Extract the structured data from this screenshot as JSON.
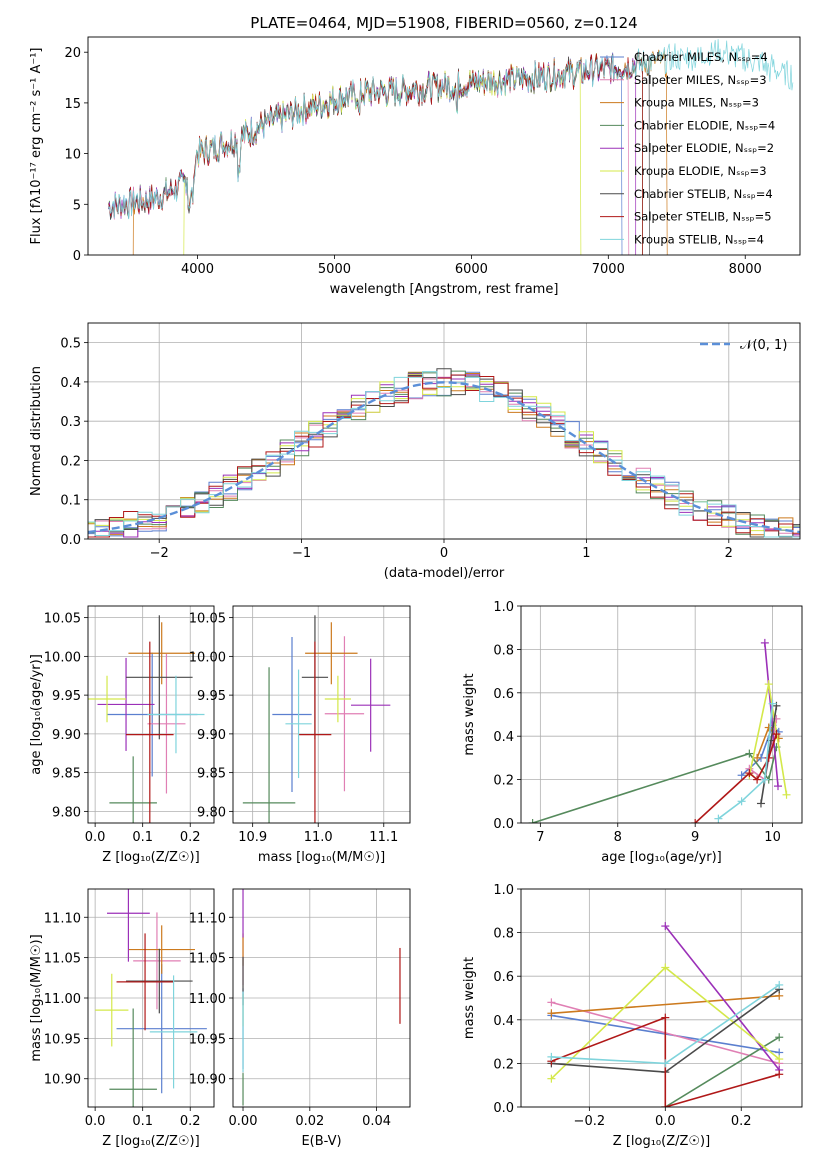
{
  "chart_data": [
    {
      "type": "line",
      "title": "PLATE=0464, MJD=51908, FIBERID=0560, z=0.124",
      "xlabel": "wavelength [Angstrom, rest frame]",
      "ylabel": "Flux [fλ10⁻¹⁷ erg cm⁻² s⁻¹ A⁻¹]",
      "xlim": [
        3200,
        8400
      ],
      "ylim": [
        0,
        21.5
      ],
      "xticks": [
        4000,
        5000,
        6000,
        7000,
        8000
      ],
      "yticks": [
        0,
        5,
        10,
        15,
        20
      ],
      "legend_position": "top-right",
      "series": [
        {
          "name": "Chabrier MILES, N_SSP=4",
          "color": "#5b7fcf"
        },
        {
          "name": "Salpeter MILES, N_SSP=3",
          "color": "#e07fb4"
        },
        {
          "name": "Kroupa MILES, N_SSP=3",
          "color": "#cc7a1e"
        },
        {
          "name": "Chabrier ELODIE, N_SSP=4",
          "color": "#558a5c"
        },
        {
          "name": "Salpeter ELODIE, N_SSP=2",
          "color": "#9b30b8"
        },
        {
          "name": "Kroupa ELODIE, N_SSP=3",
          "color": "#d4e84a"
        },
        {
          "name": "Chabrier STELIB, N_SSP=4",
          "color": "#4a4a4a"
        },
        {
          "name": "Salpeter STELIB, N_SSP=5",
          "color": "#b01818"
        },
        {
          "name": "Kroupa STELIB, N_SSP=4",
          "color": "#7fd4dc"
        }
      ],
      "continuum": {
        "x": [
          3350,
          3700,
          3900,
          4000,
          4300,
          4500,
          4800,
          5000,
          5200,
          5500,
          5800,
          6000,
          6300,
          6600,
          6900,
          7200,
          7500,
          7800,
          8100,
          8350
        ],
        "y": [
          4.8,
          5.6,
          7.0,
          10.0,
          11.5,
          13.0,
          14.5,
          15.3,
          16.0,
          16.2,
          16.7,
          17.0,
          17.3,
          17.8,
          18.2,
          18.8,
          19.4,
          20.0,
          19.0,
          17.5
        ]
      }
    },
    {
      "type": "histogram",
      "xlabel": "(data-model)/error",
      "ylabel": "Normed distribution",
      "xlim": [
        -2.5,
        2.5
      ],
      "ylim": [
        0,
        0.55
      ],
      "xticks": [
        -2,
        -1,
        0,
        1,
        2
      ],
      "yticks": [
        0.0,
        0.1,
        0.2,
        0.3,
        0.4,
        0.5
      ],
      "reference_curve": "𝒩(0, 1)",
      "reference_color": "#5b8fd8",
      "bin_width": 0.1
    },
    {
      "type": "scatter",
      "xlabel": "Z [log₁₀(Z/Z☉)]",
      "ylabel": "age  [log₁₀(age/yr)]",
      "xlim": [
        -0.015,
        0.25
      ],
      "ylim": [
        9.785,
        10.065
      ],
      "xticks": [
        0.0,
        0.1,
        0.2
      ],
      "yticks": [
        9.8,
        9.85,
        9.9,
        9.95,
        10.0,
        10.05
      ],
      "points": [
        {
          "x": 0.12,
          "y": 9.925,
          "xerr": 0.095,
          "yerr": 0.08,
          "color": "#5b7fcf"
        },
        {
          "x": 0.15,
          "y": 9.913,
          "xerr": 0.04,
          "yerr": 0.09,
          "color": "#e07fb4"
        },
        {
          "x": 0.14,
          "y": 10.004,
          "xerr": 0.07,
          "yerr": 0.04,
          "color": "#cc7a1e"
        },
        {
          "x": 0.08,
          "y": 9.811,
          "xerr": 0.05,
          "yerr": 0.06,
          "color": "#558a5c"
        },
        {
          "x": 0.065,
          "y": 9.938,
          "xerr": 0.06,
          "yerr": 0.06,
          "color": "#9b30b8"
        },
        {
          "x": 0.025,
          "y": 9.945,
          "xerr": 0.04,
          "yerr": 0.03,
          "color": "#d4e84a"
        },
        {
          "x": 0.135,
          "y": 9.973,
          "xerr": 0.07,
          "yerr": 0.08,
          "color": "#4a4a4a"
        },
        {
          "x": 0.115,
          "y": 9.899,
          "xerr": 0.05,
          "yerr": 0.12,
          "color": "#b01818"
        },
        {
          "x": 0.17,
          "y": 9.925,
          "xerr": 0.06,
          "yerr": 0.05,
          "color": "#7fd4dc"
        }
      ]
    },
    {
      "type": "scatter",
      "xlabel": "mass [log₁₀(M/M☉)]",
      "ylabel": "",
      "xlim": [
        10.87,
        11.14
      ],
      "ylim": [
        9.785,
        10.065
      ],
      "xticks": [
        10.9,
        11.0,
        11.1
      ],
      "yticks": [
        9.8,
        9.85,
        9.9,
        9.95,
        10.0,
        10.05
      ],
      "points": [
        {
          "x": 10.96,
          "y": 9.925,
          "xerr": 0.03,
          "yerr": 0.1,
          "color": "#5b7fcf"
        },
        {
          "x": 11.04,
          "y": 9.926,
          "xerr": 0.03,
          "yerr": 0.1,
          "color": "#e07fb4"
        },
        {
          "x": 11.02,
          "y": 10.004,
          "xerr": 0.04,
          "yerr": 0.04,
          "color": "#cc7a1e"
        },
        {
          "x": 10.925,
          "y": 9.811,
          "xerr": 0.04,
          "yerr": 0.175,
          "color": "#558a5c"
        },
        {
          "x": 11.08,
          "y": 9.937,
          "xerr": 0.03,
          "yerr": 0.06,
          "color": "#9b30b8"
        },
        {
          "x": 11.03,
          "y": 9.945,
          "xerr": 0.02,
          "yerr": 0.03,
          "color": "#d4e84a"
        },
        {
          "x": 10.995,
          "y": 9.973,
          "xerr": 0.02,
          "yerr": 0.08,
          "color": "#4a4a4a"
        },
        {
          "x": 10.995,
          "y": 9.899,
          "xerr": 0.025,
          "yerr": 0.12,
          "color": "#b01818"
        },
        {
          "x": 10.97,
          "y": 9.913,
          "xerr": 0.02,
          "yerr": 0.07,
          "color": "#7fd4dc"
        }
      ]
    },
    {
      "type": "line",
      "xlabel": "age  [log₁₀(age/yr)]",
      "ylabel": "mass weight",
      "xlim": [
        6.75,
        10.38
      ],
      "ylim": [
        0,
        1.0
      ],
      "xticks": [
        7,
        8,
        9,
        10
      ],
      "yticks": [
        0.0,
        0.2,
        0.4,
        0.6,
        0.8,
        1.0
      ],
      "series": [
        {
          "color": "#5b7fcf",
          "x": [
            9.6,
            9.85,
            10.0,
            10.08
          ],
          "y": [
            0.22,
            0.3,
            0.45,
            0.42
          ]
        },
        {
          "color": "#e07fb4",
          "x": [
            9.7,
            9.9,
            10.05
          ],
          "y": [
            0.25,
            0.2,
            0.48
          ]
        },
        {
          "color": "#cc7a1e",
          "x": [
            9.8,
            9.95,
            10.08
          ],
          "y": [
            0.3,
            0.44,
            0.39
          ]
        },
        {
          "color": "#558a5c",
          "x": [
            6.9,
            9.7,
            9.95,
            10.05
          ],
          "y": [
            0.0,
            0.32,
            0.2,
            0.35
          ]
        },
        {
          "color": "#9b30b8",
          "x": [
            9.9,
            10.07
          ],
          "y": [
            0.83,
            0.17
          ]
        },
        {
          "color": "#d4e84a",
          "x": [
            9.7,
            9.95,
            10.18
          ],
          "y": [
            0.22,
            0.64,
            0.13
          ]
        },
        {
          "color": "#4a4a4a",
          "x": [
            9.85,
            9.98,
            10.05
          ],
          "y": [
            0.09,
            0.38,
            0.54
          ]
        },
        {
          "color": "#b01818",
          "x": [
            9.0,
            9.7,
            9.8,
            9.95,
            10.05
          ],
          "y": [
            0.0,
            0.23,
            0.2,
            0.3,
            0.41
          ]
        },
        {
          "color": "#7fd4dc",
          "x": [
            9.3,
            9.6,
            9.9,
            10.0
          ],
          "y": [
            0.02,
            0.1,
            0.2,
            0.55
          ]
        }
      ]
    },
    {
      "type": "scatter",
      "xlabel": "Z [log₁₀(Z/Z☉)]",
      "ylabel": "mass [log₁₀(M/M☉)]",
      "xlim": [
        -0.015,
        0.25
      ],
      "ylim": [
        10.865,
        11.135
      ],
      "xticks": [
        0.0,
        0.1,
        0.2
      ],
      "yticks": [
        10.9,
        10.95,
        11.0,
        11.05,
        11.1
      ],
      "points": [
        {
          "x": 0.14,
          "y": 10.962,
          "xerr": 0.095,
          "yerr": 0.08,
          "color": "#5b7fcf"
        },
        {
          "x": 0.13,
          "y": 11.046,
          "xerr": 0.05,
          "yerr": 0.06,
          "color": "#e07fb4"
        },
        {
          "x": 0.14,
          "y": 11.06,
          "xerr": 0.07,
          "yerr": 0.03,
          "color": "#cc7a1e"
        },
        {
          "x": 0.08,
          "y": 10.887,
          "xerr": 0.05,
          "yerr": 0.1,
          "color": "#558a5c"
        },
        {
          "x": 0.07,
          "y": 11.105,
          "xerr": 0.045,
          "yerr": 0.06,
          "color": "#9b30b8"
        },
        {
          "x": 0.035,
          "y": 10.985,
          "xerr": 0.035,
          "yerr": 0.045,
          "color": "#d4e84a"
        },
        {
          "x": 0.135,
          "y": 11.021,
          "xerr": 0.07,
          "yerr": 0.04,
          "color": "#4a4a4a"
        },
        {
          "x": 0.105,
          "y": 11.02,
          "xerr": 0.06,
          "yerr": 0.06,
          "color": "#b01818"
        },
        {
          "x": 0.165,
          "y": 10.958,
          "xerr": 0.05,
          "yerr": 0.07,
          "color": "#7fd4dc"
        }
      ]
    },
    {
      "type": "scatter",
      "xlabel": "E(B-V)",
      "ylabel": "",
      "xlim": [
        -0.003,
        0.05
      ],
      "ylim": [
        10.865,
        11.135
      ],
      "xticks": [
        0.0,
        0.02,
        0.04
      ],
      "yticks": [
        10.9,
        10.95,
        11.0,
        11.05,
        11.1
      ],
      "points": [
        {
          "x": 0.0,
          "y": 10.962,
          "xerr": 0,
          "yerr": 0.05,
          "color": "#5b7fcf"
        },
        {
          "x": 0.0,
          "y": 11.046,
          "xerr": 0,
          "yerr": 0.03,
          "color": "#e07fb4"
        },
        {
          "x": 0.0,
          "y": 11.06,
          "xerr": 0,
          "yerr": 0.02,
          "color": "#cc7a1e"
        },
        {
          "x": 0.0,
          "y": 10.887,
          "xerr": 0,
          "yerr": 0.02,
          "color": "#558a5c"
        },
        {
          "x": 0.0,
          "y": 11.105,
          "xerr": 0,
          "yerr": 0.03,
          "color": "#9b30b8"
        },
        {
          "x": 0.0,
          "y": 10.985,
          "xerr": 0,
          "yerr": 0.02,
          "color": "#d4e84a"
        },
        {
          "x": 0.0,
          "y": 11.021,
          "xerr": 0,
          "yerr": 0.03,
          "color": "#4a4a4a"
        },
        {
          "x": 0.047,
          "y": 11.015,
          "xerr": 0,
          "yerr": 0.047,
          "color": "#b01818"
        },
        {
          "x": 0.0,
          "y": 10.958,
          "xerr": 0,
          "yerr": 0.05,
          "color": "#7fd4dc"
        }
      ]
    },
    {
      "type": "line",
      "xlabel": "Z [log₁₀(Z/Z☉)]",
      "ylabel": "mass weight",
      "xlim": [
        -0.38,
        0.36
      ],
      "ylim": [
        0,
        1.0
      ],
      "xticks": [
        -0.2,
        0.0,
        0.2
      ],
      "yticks": [
        0.0,
        0.2,
        0.4,
        0.6,
        0.8,
        1.0
      ],
      "series": [
        {
          "color": "#5b7fcf",
          "x": [
            -0.3,
            0.3
          ],
          "y": [
            0.42,
            0.25
          ]
        },
        {
          "color": "#e07fb4",
          "x": [
            -0.3,
            0.3
          ],
          "y": [
            0.48,
            0.2
          ]
        },
        {
          "color": "#cc7a1e",
          "x": [
            -0.3,
            0.3
          ],
          "y": [
            0.43,
            0.51
          ]
        },
        {
          "color": "#558a5c",
          "x": [
            0.0,
            0.3
          ],
          "y": [
            0.0,
            0.32
          ]
        },
        {
          "color": "#9b30b8",
          "x": [
            0.0,
            0.3
          ],
          "y": [
            0.83,
            0.17
          ]
        },
        {
          "color": "#d4e84a",
          "x": [
            -0.3,
            0.0,
            0.3
          ],
          "y": [
            0.13,
            0.64,
            0.22
          ]
        },
        {
          "color": "#4a4a4a",
          "x": [
            -0.3,
            0.0,
            0.3
          ],
          "y": [
            0.2,
            0.16,
            0.54
          ]
        },
        {
          "color": "#b01818",
          "x": [
            -0.3,
            0.0,
            0.0,
            0.3
          ],
          "y": [
            0.21,
            0.41,
            0.0,
            0.15
          ]
        },
        {
          "color": "#7fd4dc",
          "x": [
            -0.3,
            0.0,
            0.3
          ],
          "y": [
            0.23,
            0.2,
            0.56
          ]
        }
      ]
    }
  ]
}
